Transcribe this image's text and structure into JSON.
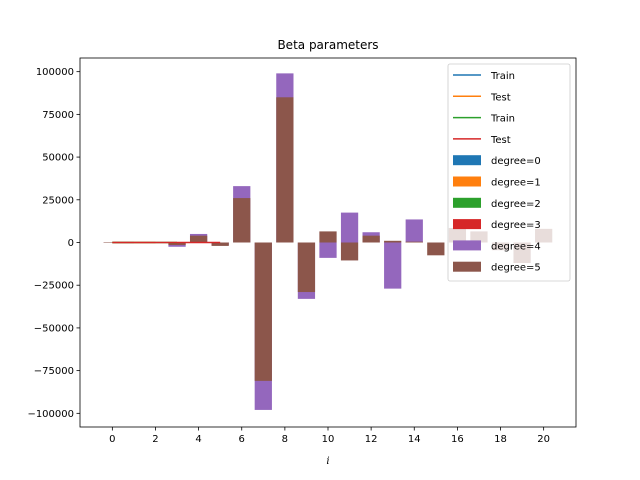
{
  "chart_data": {
    "type": "bar",
    "title": "Beta parameters",
    "xlabel": "i",
    "ylabel": "",
    "xlim": [
      -1.5,
      21.5
    ],
    "ylim": [
      -108000,
      108000
    ],
    "xticks": [
      0,
      2,
      4,
      6,
      8,
      10,
      12,
      14,
      16,
      18,
      20
    ],
    "yticks": [
      -100000,
      -75000,
      -50000,
      -25000,
      0,
      25000,
      50000,
      75000,
      100000
    ],
    "ytick_labels": [
      "−100000",
      "−75000",
      "−50000",
      "−25000",
      "0",
      "25000",
      "50000",
      "75000",
      "100000"
    ],
    "legend_position": "upper right",
    "lines": [
      {
        "name": "Train",
        "color": "#1f77b4",
        "x": [
          0,
          1
        ],
        "y": [
          0,
          0
        ]
      },
      {
        "name": "Test",
        "color": "#ff7f0e",
        "x": [
          0,
          1,
          2
        ],
        "y": [
          0,
          0,
          0
        ]
      },
      {
        "name": "Train",
        "color": "#2ca02c",
        "x": [
          0,
          1,
          2,
          3
        ],
        "y": [
          0,
          0,
          0,
          0
        ]
      },
      {
        "name": "Test",
        "color": "#d62728",
        "x": [
          0,
          1,
          2,
          3,
          4,
          5
        ],
        "y": [
          0,
          0,
          0,
          0,
          0,
          0
        ]
      }
    ],
    "series": [
      {
        "name": "degree=0",
        "color": "#1f77b4",
        "x": [
          0
        ],
        "values": [
          0
        ]
      },
      {
        "name": "degree=1",
        "color": "#ff7f0e",
        "x": [
          0,
          1
        ],
        "values": [
          0,
          0
        ]
      },
      {
        "name": "degree=2",
        "color": "#2ca02c",
        "x": [
          0,
          1,
          2
        ],
        "values": [
          0,
          0,
          0
        ]
      },
      {
        "name": "degree=3",
        "color": "#d62728",
        "x": [
          0,
          1,
          2,
          3,
          4,
          5
        ],
        "values": [
          0,
          0,
          0,
          0,
          0,
          0
        ]
      },
      {
        "name": "degree=4",
        "color": "#9467bd",
        "x": [
          0,
          1,
          2,
          3,
          4,
          5,
          6,
          7,
          8,
          9,
          10,
          11,
          12,
          13,
          14
        ],
        "values": [
          0,
          200,
          -300,
          -2500,
          5000,
          -1500,
          33000,
          -98000,
          99000,
          -33000,
          -9000,
          17500,
          6000,
          -27000,
          13500
        ]
      },
      {
        "name": "degree=5",
        "color": "#8c564b",
        "x": [
          0,
          1,
          2,
          3,
          4,
          5,
          6,
          7,
          8,
          9,
          10,
          11,
          12,
          13,
          14,
          15,
          16,
          17,
          18,
          19,
          20
        ],
        "values": [
          0,
          100,
          -200,
          -1500,
          4000,
          -2000,
          26000,
          -81000,
          85000,
          -29000,
          6500,
          -10500,
          4000,
          1000,
          500,
          -7500,
          8500,
          6500,
          -4500,
          -12000,
          8000
        ]
      }
    ]
  }
}
